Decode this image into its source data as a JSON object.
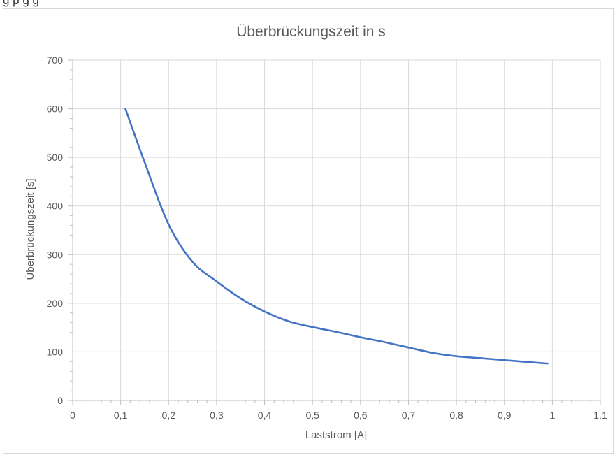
{
  "page": {
    "cut_text": "g                p         g         g"
  },
  "chart_data": {
    "type": "line",
    "title": "Überbrückungszeit in s",
    "xlabel": "Laststrom [A]",
    "ylabel": "Überbrückungszeit [s]",
    "xlim": [
      0,
      1.1
    ],
    "ylim": [
      0,
      700
    ],
    "x_ticks": [
      0,
      0.1,
      0.2,
      0.3,
      0.4,
      0.5,
      0.6,
      0.7,
      0.8,
      0.9,
      1,
      1.1
    ],
    "x_tick_labels": [
      "0",
      "0,1",
      "0,2",
      "0,3",
      "0,4",
      "0,5",
      "0,6",
      "0,7",
      "0,8",
      "0,9",
      "1",
      "1,1"
    ],
    "y_ticks": [
      0,
      100,
      200,
      300,
      400,
      500,
      600,
      700
    ],
    "y_tick_labels": [
      "0",
      "100",
      "200",
      "300",
      "400",
      "500",
      "600",
      "700"
    ],
    "grid": true,
    "series": [
      {
        "color": "#4472c4",
        "x": [
          0.11,
          0.15,
          0.2,
          0.25,
          0.3,
          0.35,
          0.4,
          0.45,
          0.5,
          0.55,
          0.6,
          0.65,
          0.7,
          0.75,
          0.8,
          0.85,
          0.9,
          0.95,
          0.99
        ],
        "y": [
          600,
          490,
          362,
          285,
          245,
          210,
          183,
          163,
          151,
          141,
          130,
          120,
          109,
          98,
          91,
          87,
          83,
          79,
          76
        ]
      }
    ]
  }
}
